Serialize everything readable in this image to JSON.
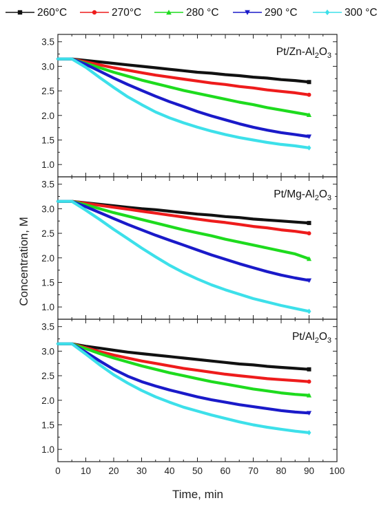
{
  "chart_data": {
    "type": "line",
    "xlabel": "Time, min",
    "ylabel": "Concentration, M",
    "xlim": [
      0,
      100
    ],
    "xticks": [
      "0",
      "10",
      "20",
      "30",
      "40",
      "50",
      "60",
      "70",
      "80",
      "90",
      "100"
    ],
    "ylim": [
      0.75,
      3.65
    ],
    "yticks": [
      "1.0",
      "1.5",
      "2.0",
      "2.5",
      "3.0",
      "3.5"
    ],
    "legend_position": "top",
    "legend": [
      {
        "label": "260°C",
        "color": "#111111",
        "marker": "square"
      },
      {
        "label": "270°C",
        "color": "#ee1c1c",
        "marker": "circle"
      },
      {
        "label": "280 °C",
        "color": "#1edb1e",
        "marker": "triangle-up"
      },
      {
        "label": "290 °C",
        "color": "#1a1ac9",
        "marker": "triangle-down"
      },
      {
        "label": "300 °C",
        "color": "#3de0ea",
        "marker": "diamond"
      }
    ],
    "panels": [
      {
        "label_main": "Pt/Zn-Al",
        "label_sub": "2",
        "label_end": "O",
        "label_sub2": "3",
        "x": [
          0,
          5,
          10,
          15,
          20,
          25,
          30,
          35,
          40,
          45,
          50,
          55,
          60,
          65,
          70,
          75,
          80,
          85,
          90
        ],
        "series": [
          {
            "name": "260°C",
            "values": [
              3.15,
              3.15,
              3.12,
              3.09,
              3.06,
              3.03,
              3.0,
              2.97,
              2.94,
              2.91,
              2.88,
              2.86,
              2.83,
              2.81,
              2.78,
              2.76,
              2.73,
              2.71,
              2.68
            ]
          },
          {
            "name": "270°C",
            "values": [
              3.15,
              3.15,
              3.09,
              3.03,
              2.97,
              2.92,
              2.87,
              2.82,
              2.78,
              2.74,
              2.7,
              2.66,
              2.63,
              2.59,
              2.56,
              2.52,
              2.49,
              2.46,
              2.42
            ]
          },
          {
            "name": "280 °C",
            "values": [
              3.15,
              3.15,
              3.06,
              2.97,
              2.88,
              2.8,
              2.72,
              2.65,
              2.58,
              2.51,
              2.45,
              2.39,
              2.33,
              2.27,
              2.22,
              2.16,
              2.11,
              2.06,
              2.01
            ]
          },
          {
            "name": "290 °C",
            "values": [
              3.15,
              3.15,
              3.04,
              2.9,
              2.76,
              2.63,
              2.51,
              2.39,
              2.28,
              2.18,
              2.08,
              1.99,
              1.91,
              1.83,
              1.76,
              1.7,
              1.65,
              1.61,
              1.57
            ]
          },
          {
            "name": "300 °C",
            "values": [
              3.15,
              3.15,
              2.98,
              2.77,
              2.57,
              2.38,
              2.22,
              2.07,
              1.95,
              1.85,
              1.76,
              1.68,
              1.61,
              1.55,
              1.5,
              1.45,
              1.41,
              1.38,
              1.34
            ]
          }
        ]
      },
      {
        "label_main": "Pt/Mg-Al",
        "label_sub": "2",
        "label_end": "O",
        "label_sub2": "3",
        "x": [
          0,
          5,
          10,
          15,
          20,
          25,
          30,
          35,
          40,
          45,
          50,
          55,
          60,
          65,
          70,
          75,
          80,
          85,
          90
        ],
        "series": [
          {
            "name": "260°C",
            "values": [
              3.15,
              3.15,
              3.12,
              3.09,
              3.06,
              3.03,
              3.0,
              2.98,
              2.95,
              2.92,
              2.89,
              2.87,
              2.84,
              2.82,
              2.79,
              2.77,
              2.75,
              2.73,
              2.71
            ]
          },
          {
            "name": "270°C",
            "values": [
              3.15,
              3.15,
              3.11,
              3.07,
              3.03,
              2.99,
              2.95,
              2.91,
              2.87,
              2.83,
              2.79,
              2.75,
              2.72,
              2.68,
              2.64,
              2.61,
              2.57,
              2.54,
              2.5
            ]
          },
          {
            "name": "280 °C",
            "values": [
              3.15,
              3.15,
              3.08,
              3.0,
              2.92,
              2.85,
              2.78,
              2.71,
              2.64,
              2.57,
              2.51,
              2.45,
              2.38,
              2.32,
              2.26,
              2.2,
              2.14,
              2.08,
              1.98
            ]
          },
          {
            "name": "290 °C",
            "values": [
              3.15,
              3.15,
              3.04,
              2.92,
              2.8,
              2.68,
              2.57,
              2.46,
              2.36,
              2.26,
              2.16,
              2.06,
              1.97,
              1.88,
              1.8,
              1.72,
              1.65,
              1.59,
              1.54
            ]
          },
          {
            "name": "300 °C",
            "values": [
              3.15,
              3.15,
              2.97,
              2.78,
              2.58,
              2.39,
              2.2,
              2.02,
              1.85,
              1.7,
              1.57,
              1.45,
              1.35,
              1.26,
              1.17,
              1.1,
              1.03,
              0.97,
              0.91
            ]
          }
        ]
      },
      {
        "label_main": "Pt/Al",
        "label_sub": "2",
        "label_end": "O",
        "label_sub2": "3",
        "x": [
          0,
          5,
          10,
          15,
          20,
          25,
          30,
          35,
          40,
          45,
          50,
          55,
          60,
          65,
          70,
          75,
          80,
          85,
          90
        ],
        "series": [
          {
            "name": "260°C",
            "values": [
              3.15,
              3.15,
              3.1,
              3.06,
              3.02,
              2.98,
              2.95,
              2.92,
              2.89,
              2.86,
              2.83,
              2.8,
              2.77,
              2.74,
              2.72,
              2.69,
              2.67,
              2.65,
              2.63
            ]
          },
          {
            "name": "270°C",
            "values": [
              3.15,
              3.15,
              3.07,
              2.99,
              2.92,
              2.86,
              2.8,
              2.75,
              2.7,
              2.65,
              2.61,
              2.57,
              2.53,
              2.5,
              2.47,
              2.44,
              2.42,
              2.4,
              2.38
            ]
          },
          {
            "name": "280 °C",
            "values": [
              3.15,
              3.15,
              3.05,
              2.95,
              2.86,
              2.78,
              2.7,
              2.63,
              2.56,
              2.5,
              2.44,
              2.38,
              2.33,
              2.28,
              2.23,
              2.19,
              2.15,
              2.12,
              2.1
            ]
          },
          {
            "name": "290 °C",
            "values": [
              3.15,
              3.15,
              2.98,
              2.8,
              2.63,
              2.49,
              2.38,
              2.29,
              2.21,
              2.14,
              2.07,
              2.01,
              1.96,
              1.91,
              1.87,
              1.83,
              1.79,
              1.76,
              1.74
            ]
          },
          {
            "name": "300 °C",
            "values": [
              3.15,
              3.15,
              2.94,
              2.72,
              2.52,
              2.35,
              2.2,
              2.07,
              1.96,
              1.86,
              1.78,
              1.7,
              1.63,
              1.56,
              1.5,
              1.45,
              1.41,
              1.37,
              1.34
            ]
          }
        ]
      }
    ]
  }
}
